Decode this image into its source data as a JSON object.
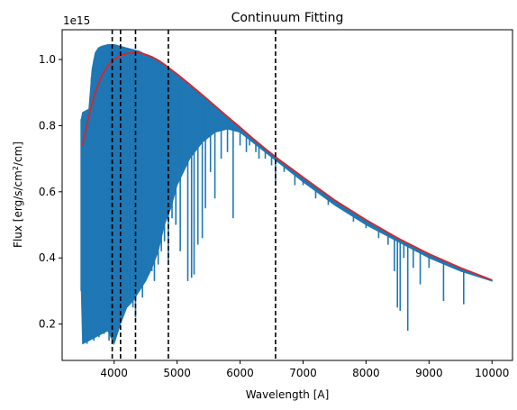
{
  "chart_data": {
    "type": "line",
    "title": "Continuum Fitting",
    "xlabel": "Wavelength [A]",
    "ylabel_main": "Flux [erg/s/cm",
    "ylabel_sup": "2",
    "ylabel_tail": "/cm]",
    "offset_text": "1e15",
    "xlim": [
      3175,
      10325
    ],
    "ylim": [
      0.09,
      1.09
    ],
    "xticks": [
      4000,
      5000,
      6000,
      7000,
      8000,
      9000,
      10000
    ],
    "xtick_labels": [
      "4000",
      "5000",
      "6000",
      "7000",
      "8000",
      "9000",
      "10000"
    ],
    "yticks": [
      0.2,
      0.4,
      0.6,
      0.8,
      1.0
    ],
    "ytick_labels": [
      "0.2",
      "0.4",
      "0.6",
      "0.8",
      "1.0"
    ],
    "grid": false,
    "series": [
      {
        "kind": "continuum_fit",
        "color": "#d62728",
        "x": [
          3500,
          3600,
          3700,
          3800,
          3900,
          4000,
          4100,
          4200,
          4300,
          4400,
          4500,
          4600,
          4700,
          4800,
          4900,
          5000,
          5200,
          5400,
          5600,
          5800,
          6000,
          6200,
          6400,
          6600,
          6800,
          7000,
          7500,
          8000,
          8500,
          9000,
          9500,
          10000
        ],
        "y": [
          0.74,
          0.83,
          0.9,
          0.95,
          0.98,
          1.0,
          1.012,
          1.018,
          1.02,
          1.02,
          1.015,
          1.008,
          0.998,
          0.985,
          0.97,
          0.956,
          0.925,
          0.893,
          0.86,
          0.827,
          0.795,
          0.762,
          0.73,
          0.7,
          0.672,
          0.644,
          0.575,
          0.515,
          0.46,
          0.412,
          0.37,
          0.333
        ]
      },
      {
        "kind": "spectrum",
        "color": "#1f77b4",
        "upper_x": [
          3480,
          3500,
          3600,
          3650,
          3700,
          3750,
          3800,
          3900,
          4000,
          4100,
          4200,
          4300,
          4400,
          4500,
          4600,
          4700,
          4800,
          4900,
          5000,
          5200,
          5400,
          5600,
          5800,
          6000,
          6200,
          6400,
          6600,
          6800,
          7000,
          7500,
          8000,
          8500,
          9000,
          9500,
          10000
        ],
        "upper_y": [
          0.82,
          0.84,
          0.85,
          0.97,
          1.02,
          1.035,
          1.04,
          1.045,
          1.045,
          1.04,
          1.035,
          1.03,
          1.025,
          1.015,
          1.008,
          0.998,
          0.985,
          0.97,
          0.956,
          0.925,
          0.893,
          0.86,
          0.827,
          0.795,
          0.762,
          0.73,
          0.7,
          0.672,
          0.644,
          0.575,
          0.515,
          0.46,
          0.412,
          0.37,
          0.333
        ],
        "lower_x": [
          3480,
          3500,
          3600,
          3700,
          3800,
          3900,
          4000,
          4100,
          4200,
          4300,
          4400,
          4500,
          4600,
          4700,
          4800,
          4900,
          5000,
          5200,
          5400,
          5600,
          5800,
          6000,
          6200,
          6400,
          6600,
          6800,
          7000,
          7500,
          8000,
          8500,
          9000,
          9500,
          10000
        ],
        "lower_y": [
          0.3,
          0.14,
          0.15,
          0.16,
          0.17,
          0.18,
          0.14,
          0.2,
          0.25,
          0.27,
          0.3,
          0.33,
          0.37,
          0.42,
          0.5,
          0.55,
          0.62,
          0.7,
          0.75,
          0.78,
          0.79,
          0.78,
          0.75,
          0.72,
          0.69,
          0.66,
          0.63,
          0.56,
          0.5,
          0.45,
          0.4,
          0.36,
          0.33
        ],
        "absorption_lines": [
          {
            "x": 3510,
            "y": 0.3
          },
          {
            "x": 3540,
            "y": 0.15
          },
          {
            "x": 3570,
            "y": 0.14
          },
          {
            "x": 3600,
            "y": 0.15
          },
          {
            "x": 3640,
            "y": 0.16
          },
          {
            "x": 3680,
            "y": 0.15
          },
          {
            "x": 3720,
            "y": 0.17
          },
          {
            "x": 3760,
            "y": 0.16
          },
          {
            "x": 3800,
            "y": 0.18
          },
          {
            "x": 3840,
            "y": 0.17
          },
          {
            "x": 3880,
            "y": 0.19
          },
          {
            "x": 3920,
            "y": 0.15
          },
          {
            "x": 3970,
            "y": 0.14
          },
          {
            "x": 4010,
            "y": 0.16
          },
          {
            "x": 4060,
            "y": 0.22
          },
          {
            "x": 4100,
            "y": 0.2
          },
          {
            "x": 4150,
            "y": 0.24
          },
          {
            "x": 4200,
            "y": 0.28
          },
          {
            "x": 4250,
            "y": 0.26
          },
          {
            "x": 4300,
            "y": 0.25
          },
          {
            "x": 4340,
            "y": 0.22
          },
          {
            "x": 4400,
            "y": 0.3
          },
          {
            "x": 4450,
            "y": 0.28
          },
          {
            "x": 4500,
            "y": 0.33
          },
          {
            "x": 4550,
            "y": 0.4
          },
          {
            "x": 4600,
            "y": 0.36
          },
          {
            "x": 4640,
            "y": 0.33
          },
          {
            "x": 4700,
            "y": 0.38
          },
          {
            "x": 4750,
            "y": 0.42
          },
          {
            "x": 4800,
            "y": 0.45
          },
          {
            "x": 4861,
            "y": 0.39
          },
          {
            "x": 4920,
            "y": 0.52
          },
          {
            "x": 4980,
            "y": 0.5
          },
          {
            "x": 5050,
            "y": 0.42
          },
          {
            "x": 5170,
            "y": 0.33
          },
          {
            "x": 5230,
            "y": 0.34
          },
          {
            "x": 5270,
            "y": 0.35
          },
          {
            "x": 5330,
            "y": 0.44
          },
          {
            "x": 5400,
            "y": 0.46
          },
          {
            "x": 5450,
            "y": 0.55
          },
          {
            "x": 5530,
            "y": 0.66
          },
          {
            "x": 5600,
            "y": 0.58
          },
          {
            "x": 5700,
            "y": 0.7
          },
          {
            "x": 5800,
            "y": 0.72
          },
          {
            "x": 5890,
            "y": 0.52
          },
          {
            "x": 6000,
            "y": 0.74
          },
          {
            "x": 6100,
            "y": 0.72
          },
          {
            "x": 6150,
            "y": 0.74
          },
          {
            "x": 6250,
            "y": 0.72
          },
          {
            "x": 6300,
            "y": 0.7
          },
          {
            "x": 6400,
            "y": 0.7
          },
          {
            "x": 6500,
            "y": 0.68
          },
          {
            "x": 6563,
            "y": 0.62
          },
          {
            "x": 6700,
            "y": 0.66
          },
          {
            "x": 6870,
            "y": 0.62
          },
          {
            "x": 7000,
            "y": 0.62
          },
          {
            "x": 7200,
            "y": 0.58
          },
          {
            "x": 7400,
            "y": 0.56
          },
          {
            "x": 7600,
            "y": 0.55
          },
          {
            "x": 7800,
            "y": 0.51
          },
          {
            "x": 8000,
            "y": 0.49
          },
          {
            "x": 8200,
            "y": 0.46
          },
          {
            "x": 8350,
            "y": 0.44
          },
          {
            "x": 8450,
            "y": 0.36
          },
          {
            "x": 8498,
            "y": 0.25
          },
          {
            "x": 8542,
            "y": 0.24
          },
          {
            "x": 8600,
            "y": 0.4
          },
          {
            "x": 8662,
            "y": 0.18
          },
          {
            "x": 8750,
            "y": 0.37
          },
          {
            "x": 8860,
            "y": 0.32
          },
          {
            "x": 9000,
            "y": 0.37
          },
          {
            "x": 9230,
            "y": 0.27
          },
          {
            "x": 9550,
            "y": 0.26
          }
        ]
      }
    ],
    "vlines": [
      {
        "x": 3970,
        "style": "dashed",
        "color": "#000000"
      },
      {
        "x": 4102,
        "style": "dashed",
        "color": "#000000"
      },
      {
        "x": 4340,
        "style": "dashed",
        "color": "#000000"
      },
      {
        "x": 4861,
        "style": "dashed",
        "color": "#000000"
      },
      {
        "x": 6563,
        "style": "dashed",
        "color": "#000000"
      }
    ]
  }
}
